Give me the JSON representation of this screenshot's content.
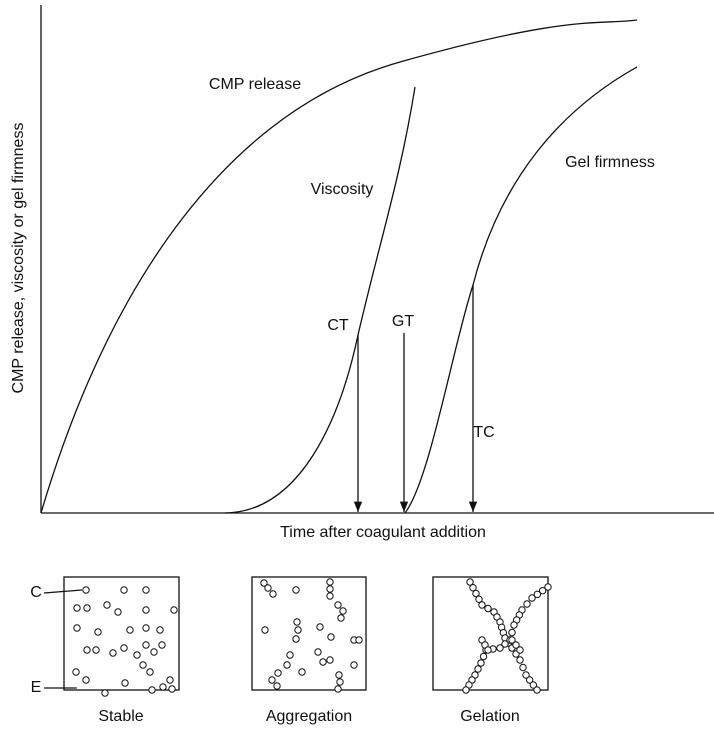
{
  "y_axis_label": "CMP release, viscosity or gel firmness",
  "x_axis_label": "Time after coagulant addition",
  "curves": [
    {
      "label": "CMP release"
    },
    {
      "label": "Viscosity"
    },
    {
      "label": "Gel firmness"
    }
  ],
  "markers": [
    {
      "label": "CT"
    },
    {
      "label": "GT"
    },
    {
      "label": "TC"
    }
  ],
  "callouts": [
    {
      "label": "C"
    },
    {
      "label": "E"
    }
  ],
  "panels": [
    {
      "label": "Stable"
    },
    {
      "label": "Aggregation"
    },
    {
      "label": "Gelation"
    }
  ]
}
